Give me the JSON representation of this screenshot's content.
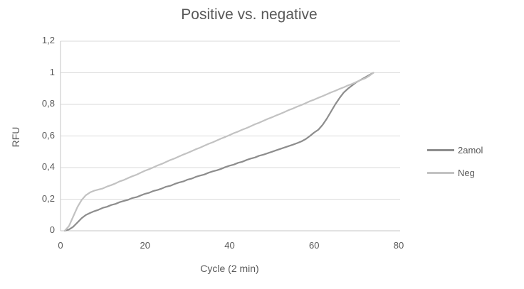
{
  "accent_colors": {
    "series_dark": "#8d8d8d",
    "series_light": "#c2c2c2",
    "gridline": "#dadada",
    "axis_line": "#c6c6c6",
    "text": "#595959"
  },
  "chart_data": {
    "type": "line",
    "title": "Positive vs. negative",
    "xlabel": "Cycle (2 min)",
    "ylabel": "RFU",
    "xlim": [
      0,
      80
    ],
    "ylim": [
      0,
      1.2
    ],
    "grid": "horizontal",
    "legend_position": "right",
    "x_ticks": [
      0,
      20,
      40,
      60,
      80
    ],
    "x_tick_labels": [
      "0",
      "20",
      "40",
      "60",
      "80"
    ],
    "y_ticks": [
      0,
      0.2,
      0.4,
      0.6,
      0.8,
      1,
      1.2
    ],
    "y_tick_labels": [
      "0",
      "0,2",
      "0,4",
      "0,6",
      "0,8",
      "1",
      "1,2"
    ],
    "x": [
      1,
      2,
      3,
      4,
      5,
      6,
      7,
      8,
      9,
      10,
      11,
      12,
      13,
      14,
      15,
      16,
      17,
      18,
      19,
      20,
      21,
      22,
      23,
      24,
      25,
      26,
      27,
      28,
      29,
      30,
      31,
      32,
      33,
      34,
      35,
      36,
      37,
      38,
      39,
      40,
      41,
      42,
      43,
      44,
      45,
      46,
      47,
      48,
      49,
      50,
      51,
      52,
      53,
      54,
      55,
      56,
      57,
      58,
      59,
      60,
      61,
      62,
      63,
      64,
      65,
      66,
      67,
      68,
      69,
      70,
      71,
      72,
      73,
      74
    ],
    "series": [
      {
        "name": "2amol",
        "color": "#8d8d8d",
        "values": [
          0,
          0.008,
          0.025,
          0.052,
          0.08,
          0.1,
          0.113,
          0.124,
          0.133,
          0.145,
          0.152,
          0.163,
          0.17,
          0.181,
          0.189,
          0.196,
          0.207,
          0.213,
          0.224,
          0.234,
          0.241,
          0.252,
          0.259,
          0.268,
          0.279,
          0.285,
          0.296,
          0.305,
          0.312,
          0.323,
          0.33,
          0.341,
          0.349,
          0.356,
          0.367,
          0.376,
          0.383,
          0.392,
          0.403,
          0.412,
          0.419,
          0.43,
          0.437,
          0.448,
          0.457,
          0.464,
          0.475,
          0.482,
          0.491,
          0.5,
          0.509,
          0.518,
          0.527,
          0.536,
          0.545,
          0.555,
          0.566,
          0.58,
          0.6,
          0.622,
          0.64,
          0.67,
          0.71,
          0.755,
          0.8,
          0.84,
          0.875,
          0.9,
          0.92,
          0.94,
          0.955,
          0.97,
          0.985,
          1
        ]
      },
      {
        "name": "Neg",
        "color": "#c2c2c2",
        "values": [
          0,
          0.03,
          0.09,
          0.15,
          0.195,
          0.225,
          0.243,
          0.254,
          0.261,
          0.268,
          0.28,
          0.289,
          0.3,
          0.313,
          0.322,
          0.334,
          0.345,
          0.355,
          0.368,
          0.38,
          0.39,
          0.402,
          0.414,
          0.424,
          0.436,
          0.448,
          0.458,
          0.47,
          0.482,
          0.492,
          0.504,
          0.516,
          0.526,
          0.538,
          0.55,
          0.56,
          0.572,
          0.584,
          0.594,
          0.606,
          0.618,
          0.628,
          0.64,
          0.65,
          0.662,
          0.674,
          0.684,
          0.696,
          0.708,
          0.718,
          0.73,
          0.74,
          0.752,
          0.764,
          0.774,
          0.786,
          0.796,
          0.808,
          0.82,
          0.83,
          0.842,
          0.852,
          0.864,
          0.876,
          0.886,
          0.898,
          0.908,
          0.92,
          0.93,
          0.942,
          0.954,
          0.964,
          0.98,
          1
        ]
      }
    ]
  }
}
